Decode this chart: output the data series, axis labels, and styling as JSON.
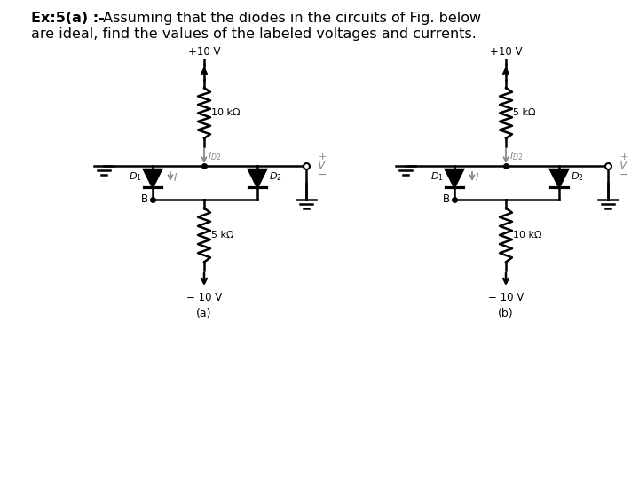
{
  "bg_color": "#ffffff",
  "title_bold": "Ex:5(a) :-",
  "title_rest": " Assuming that the diodes in the circuits of Fig. below",
  "title_line2": "are ideal, find the values of the labeled voltages and currents.",
  "circuit_a": {
    "label": "(a)",
    "top_resistor": "10 kΩ",
    "bottom_resistor": "5 kΩ"
  },
  "circuit_b": {
    "label": "(b)",
    "top_resistor": "5 kΩ",
    "bottom_resistor": "10 kΩ"
  }
}
